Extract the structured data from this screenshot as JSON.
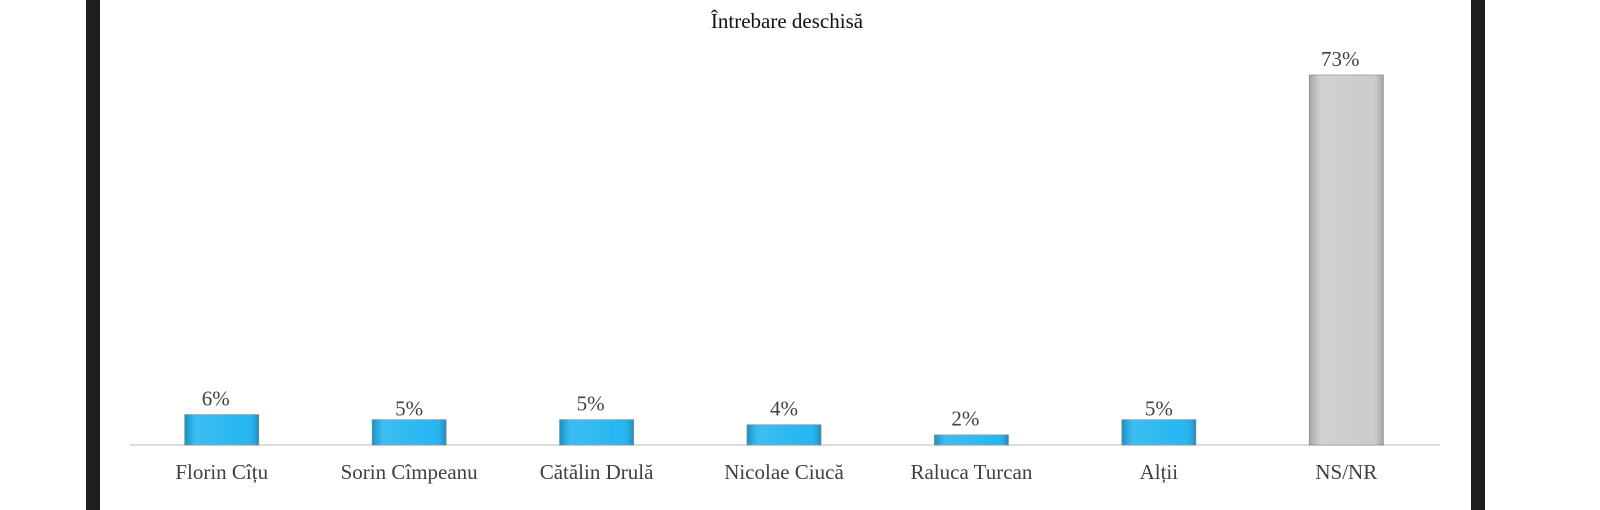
{
  "chart_data": {
    "type": "bar",
    "title": "Întrebare deschisă",
    "categories": [
      "Florin Cîțu",
      "Sorin Cîmpeanu",
      "Cătălin Drulă",
      "Nicolae Ciucă",
      "Raluca Turcan",
      "Alții",
      "NS/NR"
    ],
    "values": [
      6,
      5,
      5,
      4,
      2,
      5,
      73
    ],
    "value_labels": [
      "6%",
      "5%",
      "5%",
      "4%",
      "2%",
      "5%",
      "73%"
    ],
    "colors": [
      "#1ab2f0",
      "#1ab2f0",
      "#1ab2f0",
      "#1ab2f0",
      "#1ab2f0",
      "#1ab2f0",
      "#c9c9c9"
    ]
  }
}
